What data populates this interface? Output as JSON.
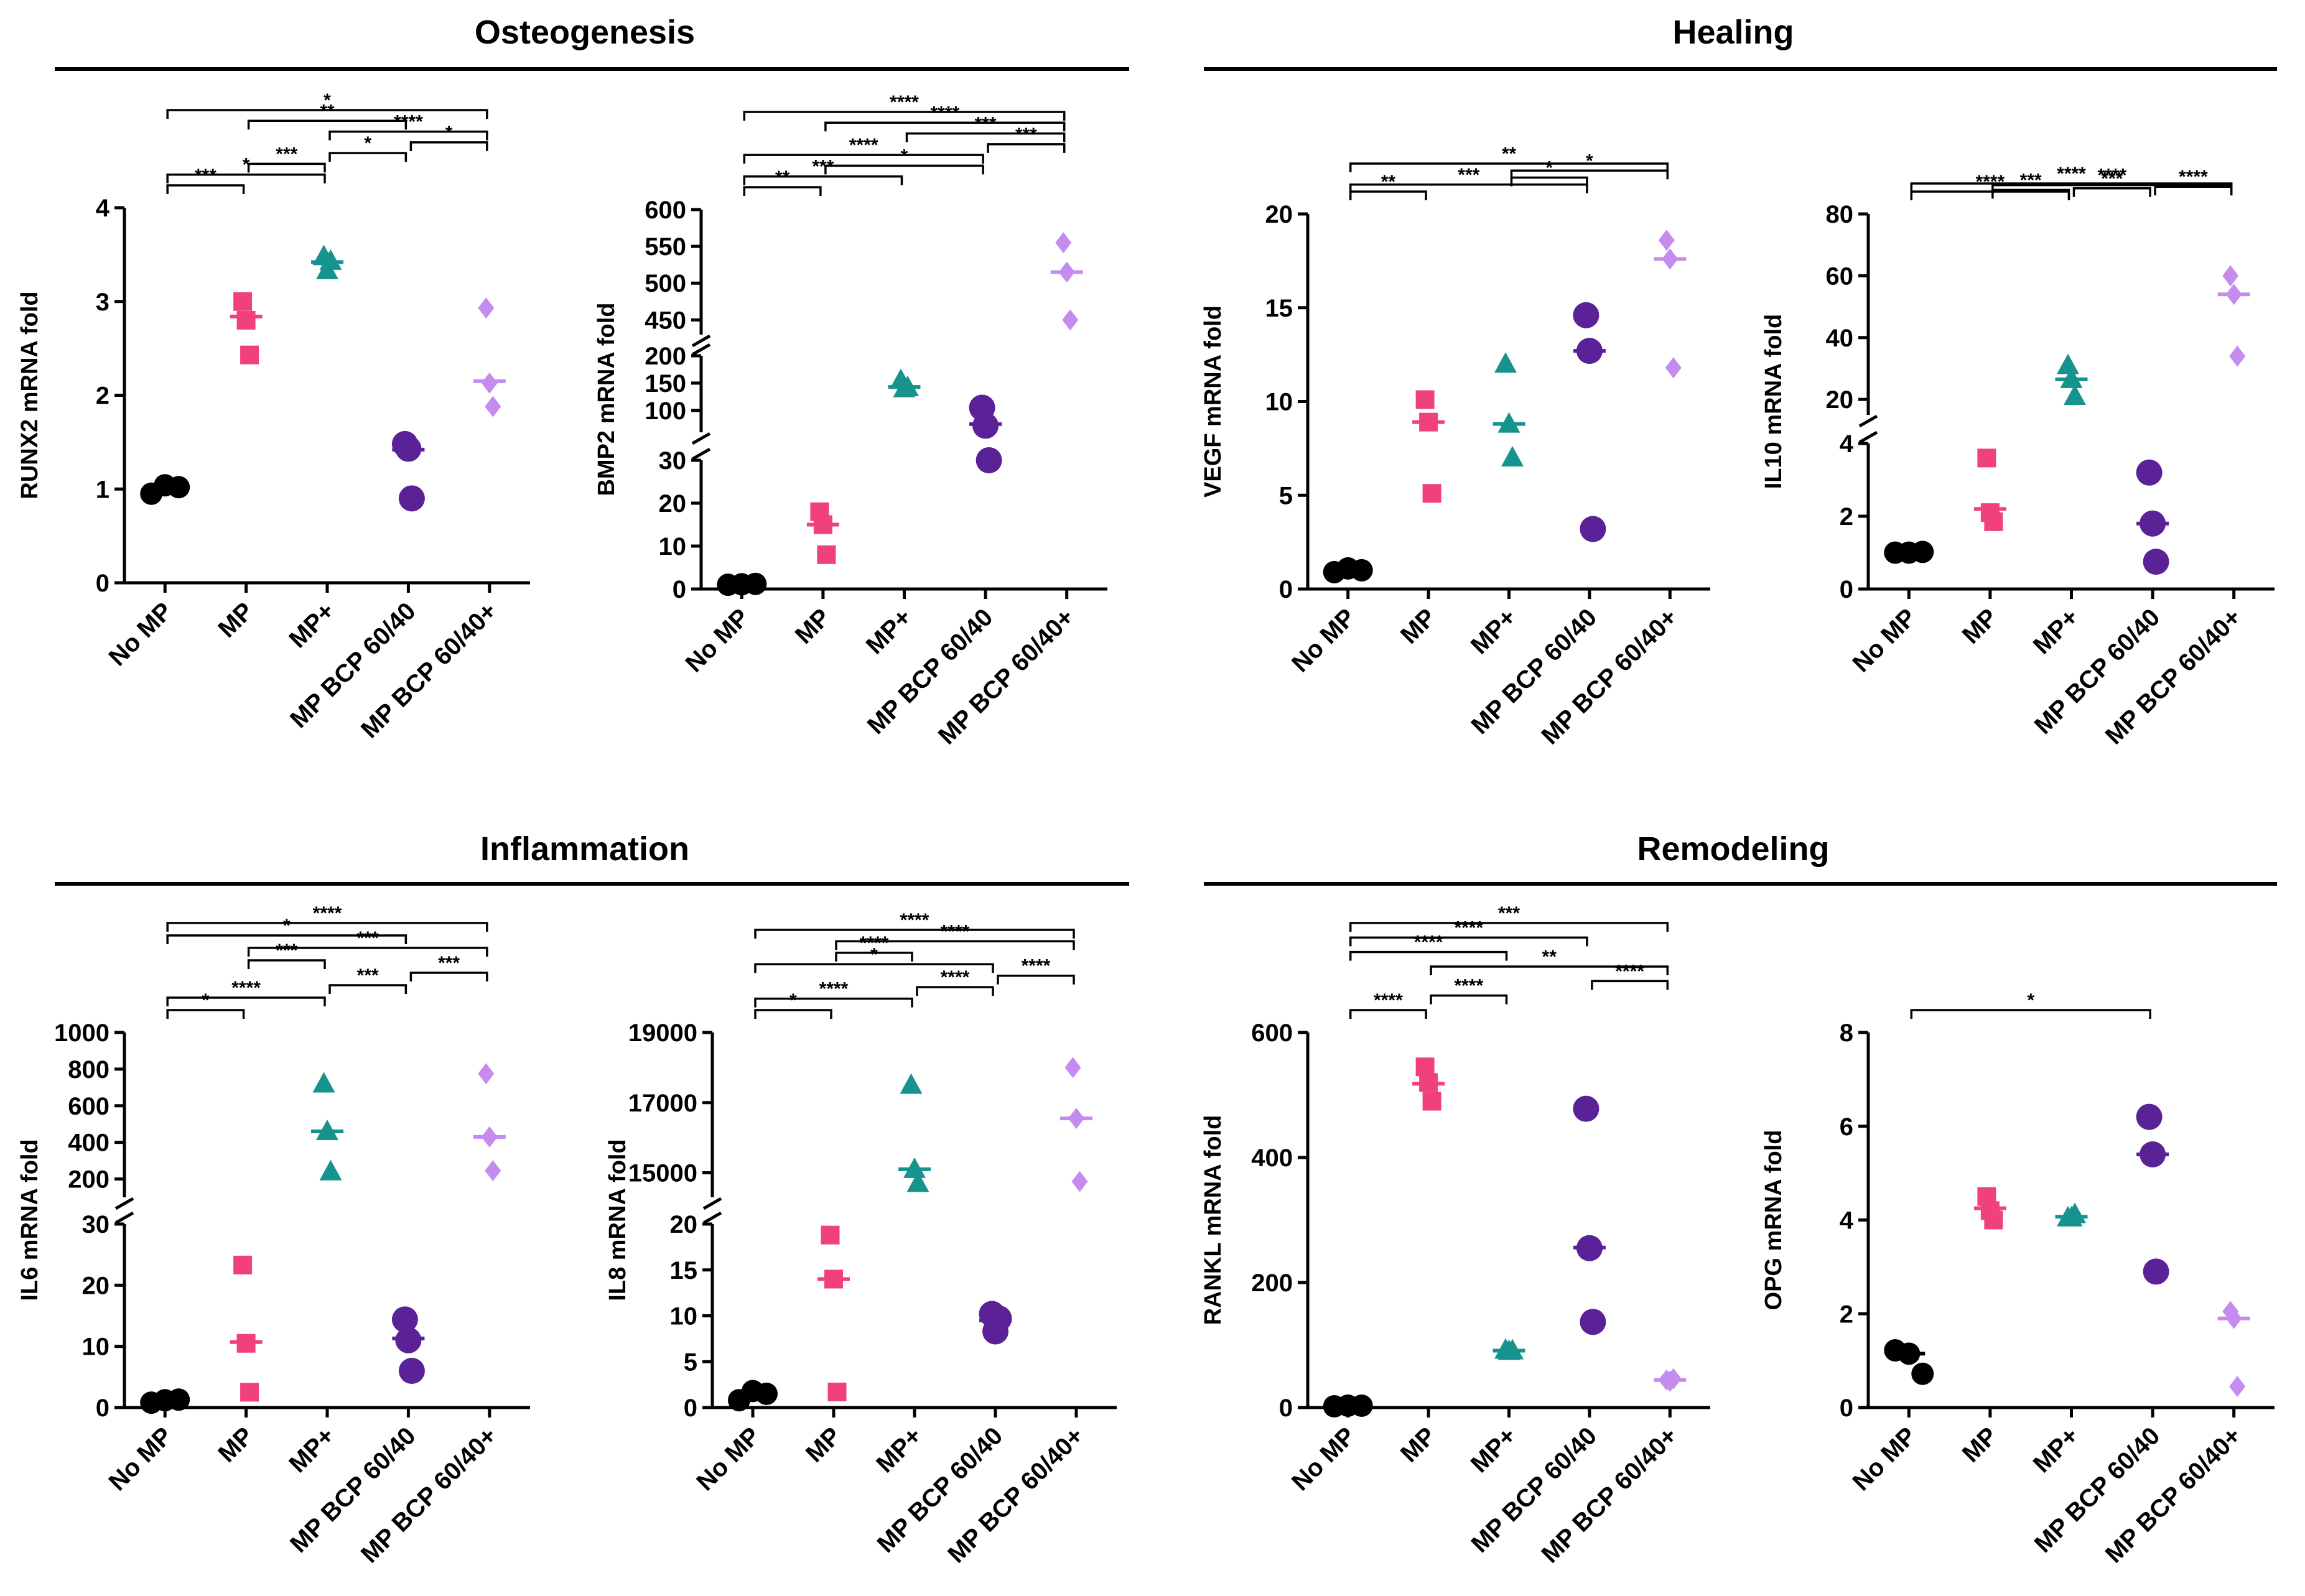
{
  "sections": [
    {
      "title": "Osteogenesis"
    },
    {
      "title": "Healing"
    },
    {
      "title": "Inflammation"
    },
    {
      "title": "Remodeling"
    }
  ],
  "groups": [
    "No MP",
    "MP",
    "MP+",
    "MP BCP 60/40",
    "MP BCP 60/40+"
  ],
  "colors": [
    "#000000",
    "#f0407e",
    "#17938e",
    "#5b2196",
    "#c58cf0"
  ],
  "chart_data": [
    {
      "id": "runx2",
      "type": "scatter",
      "ylabel": "RUNX2 mRNA fold",
      "segments": [
        {
          "lo": 0,
          "hi": 4,
          "ticks": [
            0,
            1,
            2,
            3,
            4
          ]
        }
      ],
      "categories": [
        "No MP",
        "MP",
        "MP+",
        "MP BCP 60/40",
        "MP BCP 60/40+"
      ],
      "points": [
        [
          0.95,
          1.04,
          1.02
        ],
        [
          3.0,
          2.8,
          2.43
        ],
        [
          3.48,
          3.33,
          3.43
        ],
        [
          1.48,
          1.43,
          0.9
        ],
        [
          2.93,
          2.13,
          1.88
        ]
      ],
      "means": [
        1.0,
        2.84,
        3.42,
        1.42,
        2.15
      ],
      "brackets": [
        {
          "a": 0,
          "b": 1,
          "label": "***"
        },
        {
          "a": 0,
          "b": 2,
          "label": "*"
        },
        {
          "a": 1,
          "b": 2,
          "label": "***"
        },
        {
          "a": 2,
          "b": 3,
          "label": "*"
        },
        {
          "a": 3,
          "b": 4,
          "label": "*"
        },
        {
          "a": 2,
          "b": 4,
          "label": "****"
        },
        {
          "a": 1,
          "b": 3,
          "label": "**"
        },
        {
          "a": 0,
          "b": 4,
          "label": "*"
        }
      ]
    },
    {
      "id": "bmp2",
      "type": "scatter",
      "ylabel": "BMP2 mRNA fold",
      "segments": [
        {
          "lo": 0,
          "hi": 30,
          "ticks": [
            0,
            10,
            20,
            30
          ]
        },
        {
          "lo": 60,
          "hi": 200,
          "ticks": [
            100,
            150,
            200
          ]
        },
        {
          "lo": 430,
          "hi": 600,
          "ticks": [
            450,
            500,
            550,
            600
          ]
        }
      ],
      "categories": [
        "No MP",
        "MP",
        "MP+",
        "MP BCP 60/40",
        "MP BCP 60/40+"
      ],
      "points": [
        [
          1.0,
          1.1,
          1.2
        ],
        [
          18,
          15,
          8
        ],
        [
          155,
          140,
          142
        ],
        [
          105,
          72,
          30
        ],
        [
          555,
          515,
          450
        ]
      ],
      "means": [
        1.1,
        15,
        143,
        75,
        515
      ],
      "brackets": [
        {
          "a": 0,
          "b": 1,
          "label": "**"
        },
        {
          "a": 0,
          "b": 2,
          "label": "***"
        },
        {
          "a": 1,
          "b": 3,
          "label": "*"
        },
        {
          "a": 0,
          "b": 3,
          "label": "****"
        },
        {
          "a": 3,
          "b": 4,
          "label": "***"
        },
        {
          "a": 2,
          "b": 4,
          "label": "***"
        },
        {
          "a": 1,
          "b": 4,
          "label": "****"
        },
        {
          "a": 0,
          "b": 4,
          "label": "****"
        }
      ]
    },
    {
      "id": "vegf",
      "type": "scatter",
      "ylabel": "VEGF mRNA fold",
      "segments": [
        {
          "lo": 0,
          "hi": 20,
          "ticks": [
            0,
            5,
            10,
            15,
            20
          ]
        }
      ],
      "categories": [
        "No MP",
        "MP",
        "MP+",
        "MP BCP 60/40",
        "MP BCP 60/40+"
      ],
      "points": [
        [
          0.9,
          1.1,
          1.0
        ],
        [
          10.1,
          8.9,
          5.1
        ],
        [
          12.0,
          8.8,
          7.0
        ],
        [
          14.6,
          12.7,
          3.2
        ],
        [
          18.6,
          17.6,
          11.8
        ]
      ],
      "means": [
        1.0,
        8.9,
        8.8,
        12.7,
        17.6
      ],
      "brackets": [
        {
          "a": 0,
          "b": 1,
          "label": "**"
        },
        {
          "a": 0,
          "b": 3,
          "label": "***"
        },
        {
          "a": 2,
          "b": 3,
          "label": "*"
        },
        {
          "a": 2,
          "b": 4,
          "label": "*"
        },
        {
          "a": 0,
          "b": 4,
          "label": "**"
        }
      ]
    },
    {
      "id": "il10",
      "type": "scatter",
      "ylabel": "IL10 mRNA fold",
      "segments": [
        {
          "lo": 0,
          "hi": 4,
          "ticks": [
            0,
            2,
            4
          ]
        },
        {
          "lo": 15,
          "hi": 80,
          "ticks": [
            20,
            40,
            60,
            80
          ]
        }
      ],
      "categories": [
        "No MP",
        "MP",
        "MP+",
        "MP BCP 60/40",
        "MP BCP 60/40+"
      ],
      "points": [
        [
          1.0,
          1.0,
          1.02
        ],
        [
          3.6,
          2.1,
          1.85
        ],
        [
          31,
          26.5,
          21
        ],
        [
          3.2,
          1.8,
          0.75
        ],
        [
          60,
          54,
          34
        ]
      ],
      "means": [
        1.0,
        2.2,
        26.5,
        1.8,
        54
      ],
      "brackets": [
        {
          "a": 0,
          "b": 2,
          "label": "****"
        },
        {
          "a": 1,
          "b": 2,
          "label": "***"
        },
        {
          "a": 2,
          "b": 3,
          "label": "***"
        },
        {
          "a": 3,
          "b": 4,
          "label": "****"
        },
        {
          "a": 1,
          "b": 4,
          "label": "****"
        },
        {
          "a": 0,
          "b": 4,
          "label": "****"
        }
      ]
    },
    {
      "id": "il6",
      "type": "scatter",
      "ylabel": "IL6 mRNA fold",
      "segments": [
        {
          "lo": 0,
          "hi": 30,
          "ticks": [
            0,
            10,
            20,
            30
          ]
        },
        {
          "lo": 100,
          "hi": 1000,
          "ticks": [
            200,
            400,
            600,
            800,
            1000
          ]
        }
      ],
      "categories": [
        "No MP",
        "MP",
        "MP+",
        "MP BCP 60/40",
        "MP BCP 60/40+"
      ],
      "points": [
        [
          0.8,
          1.2,
          1.3
        ],
        [
          23.3,
          10.5,
          2.5
        ],
        [
          720,
          460,
          240
        ],
        [
          14.4,
          11.0,
          6.0
        ],
        [
          775,
          430,
          245
        ]
      ],
      "means": [
        1.1,
        10.7,
        460,
        11.3,
        430
      ],
      "brackets": [
        {
          "a": 0,
          "b": 1,
          "label": "*"
        },
        {
          "a": 0,
          "b": 2,
          "label": "****"
        },
        {
          "a": 2,
          "b": 3,
          "label": "***"
        },
        {
          "a": 3,
          "b": 4,
          "label": "***"
        },
        {
          "a": 1,
          "b": 2,
          "label": "***"
        },
        {
          "a": 1,
          "b": 4,
          "label": "***"
        },
        {
          "a": 0,
          "b": 3,
          "label": "*"
        },
        {
          "a": 0,
          "b": 4,
          "label": "****"
        }
      ]
    },
    {
      "id": "il8",
      "type": "scatter",
      "ylabel": "IL8 mRNA fold",
      "segments": [
        {
          "lo": 0,
          "hi": 20,
          "ticks": [
            0,
            5,
            10,
            15,
            20
          ]
        },
        {
          "lo": 14300,
          "hi": 19000,
          "ticks": [
            15000,
            17000,
            19000
          ]
        }
      ],
      "categories": [
        "No MP",
        "MP",
        "MP+",
        "MP BCP 60/40",
        "MP BCP 60/40+"
      ],
      "points": [
        [
          0.8,
          1.8,
          1.5
        ],
        [
          18.8,
          14.0,
          1.7
        ],
        [
          17500,
          15100,
          14700
        ],
        [
          10.2,
          8.3,
          9.7
        ],
        [
          18000,
          16550,
          14750
        ]
      ],
      "means": [
        1.3,
        14.0,
        15100,
        9.5,
        16550
      ],
      "brackets": [
        {
          "a": 0,
          "b": 1,
          "label": "*"
        },
        {
          "a": 0,
          "b": 2,
          "label": "****"
        },
        {
          "a": 2,
          "b": 3,
          "label": "****"
        },
        {
          "a": 3,
          "b": 4,
          "label": "****"
        },
        {
          "a": 0,
          "b": 3,
          "label": "*"
        },
        {
          "a": 1,
          "b": 2,
          "label": "****"
        },
        {
          "a": 1,
          "b": 4,
          "label": "****"
        },
        {
          "a": 0,
          "b": 4,
          "label": "****"
        }
      ]
    },
    {
      "id": "rankl",
      "type": "scatter",
      "ylabel": "RANKL mRNA fold",
      "segments": [
        {
          "lo": 0,
          "hi": 600,
          "ticks": [
            0,
            200,
            400,
            600
          ]
        }
      ],
      "categories": [
        "No MP",
        "MP",
        "MP+",
        "MP BCP 60/40",
        "MP BCP 60/40+"
      ],
      "points": [
        [
          2,
          3,
          3
        ],
        [
          545,
          520,
          490
        ],
        [
          92,
          90,
          91
        ],
        [
          478,
          255,
          137
        ],
        [
          44,
          42,
          46
        ]
      ],
      "means": [
        3,
        518,
        91,
        256,
        44
      ],
      "brackets": [
        {
          "a": 0,
          "b": 1,
          "label": "****"
        },
        {
          "a": 1,
          "b": 2,
          "label": "****"
        },
        {
          "a": 3,
          "b": 4,
          "label": "****"
        },
        {
          "a": 1,
          "b": 4,
          "label": "**"
        },
        {
          "a": 0,
          "b": 2,
          "label": "****"
        },
        {
          "a": 0,
          "b": 3,
          "label": "****"
        },
        {
          "a": 0,
          "b": 4,
          "label": "***"
        }
      ]
    },
    {
      "id": "opg",
      "type": "scatter",
      "ylabel": "OPG mRNA fold",
      "segments": [
        {
          "lo": 0,
          "hi": 8,
          "ticks": [
            0,
            2,
            4,
            6,
            8
          ]
        }
      ],
      "categories": [
        "No MP",
        "MP",
        "MP+",
        "MP BCP 60/40",
        "MP BCP 60/40+"
      ],
      "points": [
        [
          1.22,
          1.15,
          0.72
        ],
        [
          4.5,
          4.2,
          4.0
        ],
        [
          4.05,
          4.05,
          4.12
        ],
        [
          6.2,
          5.4,
          2.9
        ],
        [
          2.05,
          1.9,
          0.45
        ]
      ],
      "means": [
        1.15,
        4.25,
        4.07,
        5.4,
        1.9
      ],
      "brackets": [
        {
          "a": 0,
          "b": 3,
          "label": "*"
        }
      ]
    }
  ]
}
